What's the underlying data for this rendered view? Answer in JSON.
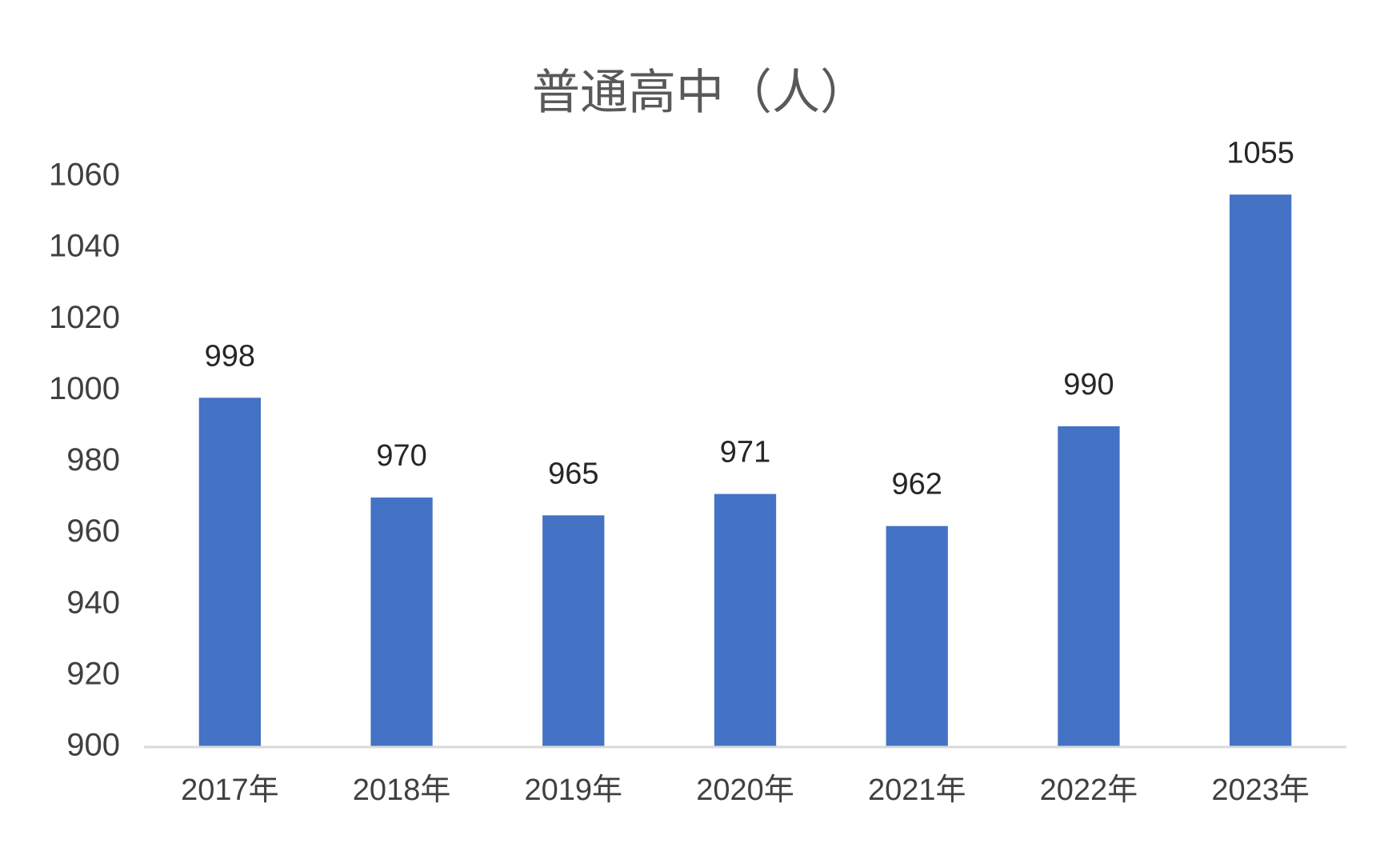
{
  "chart_data": {
    "type": "bar",
    "title": "普通高中（人）",
    "categories": [
      "2017年",
      "2018年",
      "2019年",
      "2020年",
      "2021年",
      "2022年",
      "2023年"
    ],
    "values": [
      998,
      970,
      965,
      971,
      962,
      990,
      1055
    ],
    "color": "#4472c4",
    "ylim": [
      900,
      1060
    ],
    "yticks": [
      900,
      920,
      940,
      960,
      980,
      1000,
      1020,
      1040,
      1060
    ],
    "grid": false
  }
}
